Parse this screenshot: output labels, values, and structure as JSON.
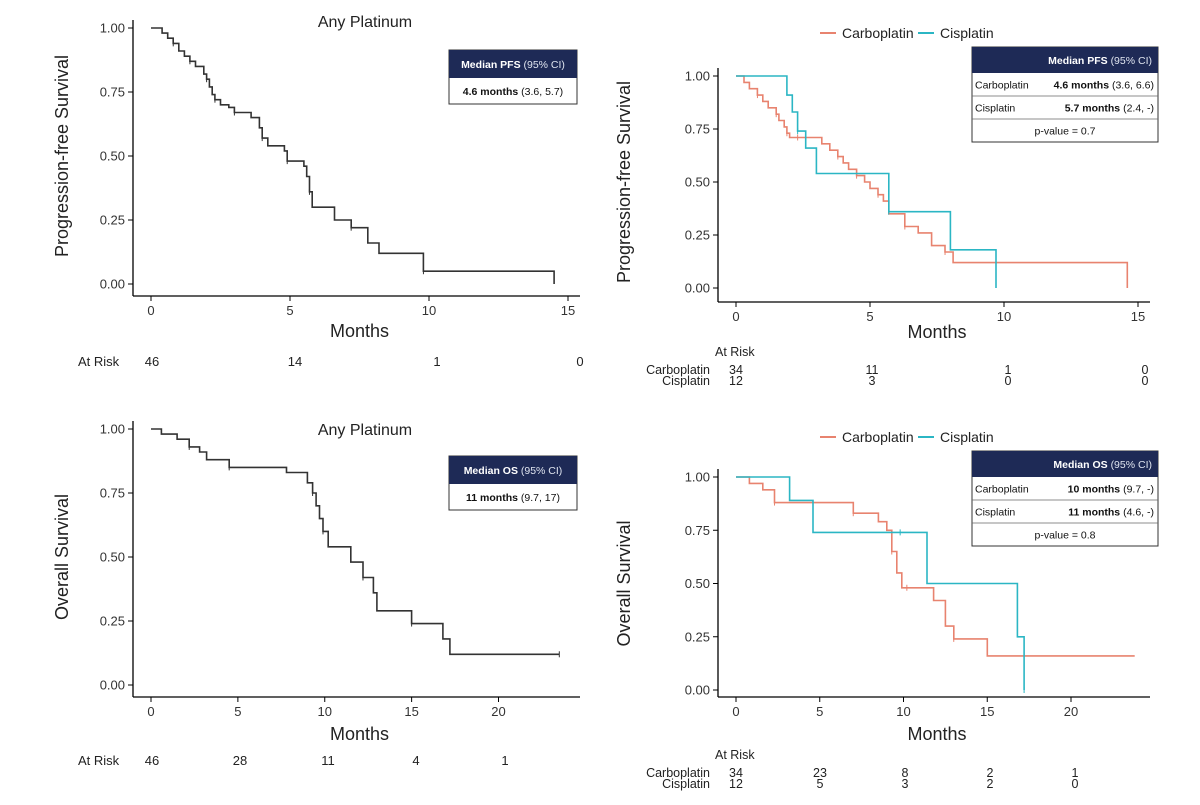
{
  "colors": {
    "carboplatin": "#e8836f",
    "cisplatin": "#2bb6c4",
    "overall": "#333333",
    "box_header": "#1e2a56"
  },
  "legend": {
    "carboplatin": "Carboplatin",
    "cisplatin": "Cisplatin"
  },
  "chart_data": [
    {
      "type": "line",
      "title": "Any Platinum",
      "xlabel": "Months",
      "ylabel": "Progression-free Survival",
      "xlim": [
        0,
        15
      ],
      "ylim": [
        0,
        1
      ],
      "xticks": [
        "0",
        "5",
        "10",
        "15"
      ],
      "yticks": [
        "0.00",
        "0.25",
        "0.50",
        "0.75",
        "1.00"
      ],
      "series": [
        {
          "key": "overall",
          "x": [
            0,
            0.4,
            0.6,
            0.8,
            1.0,
            1.2,
            1.4,
            1.6,
            1.9,
            2.0,
            2.1,
            2.2,
            2.3,
            2.5,
            2.8,
            3.0,
            3.6,
            3.9,
            4.0,
            4.2,
            4.8,
            4.9,
            5.5,
            5.6,
            5.7,
            5.8,
            6.6,
            7.2,
            7.8,
            8.2,
            9.8,
            14.5
          ],
          "y": [
            1,
            0.98,
            0.96,
            0.94,
            0.91,
            0.89,
            0.87,
            0.85,
            0.82,
            0.8,
            0.77,
            0.74,
            0.72,
            0.7,
            0.69,
            0.67,
            0.65,
            0.61,
            0.57,
            0.54,
            0.52,
            0.48,
            0.46,
            0.42,
            0.36,
            0.3,
            0.25,
            0.22,
            0.16,
            0.12,
            0.05,
            0.0
          ]
        }
      ],
      "at_risk": {
        "label": "At Risk",
        "rows": [
          {
            "name": "",
            "values": [
              "46",
              "14",
              "1",
              "0"
            ]
          }
        ]
      },
      "median_box": {
        "header": "Median PFS",
        "header_ci": "(95% CI)",
        "rows": [
          {
            "label": "",
            "value": "4.6 months",
            "ci": "(3.6, 5.7)"
          }
        ],
        "pvalue": ""
      }
    },
    {
      "type": "line",
      "title": "",
      "xlabel": "Months",
      "ylabel": "Progression-free Survival",
      "xlim": [
        0,
        15
      ],
      "ylim": [
        0,
        1
      ],
      "xticks": [
        "0",
        "5",
        "10",
        "15"
      ],
      "yticks": [
        "0.00",
        "0.25",
        "0.50",
        "0.75",
        "1.00"
      ],
      "series": [
        {
          "name": "Carboplatin",
          "key": "carboplatin",
          "x": [
            0,
            0.3,
            0.5,
            0.8,
            1.0,
            1.2,
            1.5,
            1.6,
            1.8,
            1.9,
            2.0,
            2.1,
            2.3,
            3.2,
            3.5,
            3.8,
            4.0,
            4.2,
            4.5,
            4.8,
            5.0,
            5.3,
            5.5,
            5.7,
            6.3,
            6.8,
            7.3,
            7.8,
            8.1,
            14.6
          ],
          "y": [
            1,
            0.97,
            0.94,
            0.91,
            0.88,
            0.85,
            0.82,
            0.79,
            0.76,
            0.73,
            0.71,
            0.71,
            0.71,
            0.68,
            0.65,
            0.62,
            0.59,
            0.56,
            0.53,
            0.5,
            0.47,
            0.44,
            0.41,
            0.35,
            0.29,
            0.26,
            0.2,
            0.17,
            0.12,
            0.0
          ]
        },
        {
          "name": "Cisplatin",
          "key": "cisplatin",
          "x": [
            0,
            1.9,
            2.1,
            2.3,
            2.6,
            3.0,
            5.7,
            8.0,
            9.7
          ],
          "y": [
            1,
            0.91,
            0.83,
            0.74,
            0.66,
            0.54,
            0.36,
            0.18,
            0.0
          ]
        }
      ],
      "at_risk": {
        "label": "At Risk",
        "rows": [
          {
            "name": "Carboplatin",
            "values": [
              "34",
              "11",
              "1",
              "0"
            ]
          },
          {
            "name": "Cisplatin",
            "values": [
              "12",
              "3",
              "0",
              "0"
            ]
          }
        ]
      },
      "median_box": {
        "header": "Median PFS",
        "header_ci": "(95% CI)",
        "rows": [
          {
            "label": "Carboplatin",
            "value": "4.6 months",
            "ci": "(3.6, 6.6)"
          },
          {
            "label": "Cisplatin",
            "value": "5.7 months",
            "ci": "(2.4, -)"
          }
        ],
        "pvalue": "p-value = 0.7"
      }
    },
    {
      "type": "line",
      "title": "Any Platinum",
      "xlabel": "Months",
      "ylabel": "Overall Survival",
      "xlim": [
        0,
        24
      ],
      "ylim": [
        0,
        1
      ],
      "xticks": [
        "0",
        "5",
        "10",
        "15",
        "20"
      ],
      "yticks": [
        "0.00",
        "0.25",
        "0.50",
        "0.75",
        "1.00"
      ],
      "series": [
        {
          "key": "overall",
          "x": [
            0,
            0.6,
            1.5,
            2.2,
            2.8,
            3.2,
            4.5,
            7.8,
            9.0,
            9.3,
            9.5,
            9.7,
            9.9,
            10.2,
            11.5,
            12.2,
            12.8,
            13.0,
            15.0,
            16.8,
            17.2,
            23.5
          ],
          "y": [
            1,
            0.98,
            0.96,
            0.93,
            0.91,
            0.88,
            0.85,
            0.83,
            0.79,
            0.75,
            0.7,
            0.65,
            0.6,
            0.54,
            0.48,
            0.42,
            0.36,
            0.29,
            0.24,
            0.18,
            0.12,
            0.12
          ]
        }
      ],
      "at_risk": {
        "label": "At Risk",
        "rows": [
          {
            "name": "",
            "values": [
              "46",
              "28",
              "11",
              "4",
              "1"
            ]
          }
        ]
      },
      "median_box": {
        "header": "Median OS",
        "header_ci": "(95% CI)",
        "rows": [
          {
            "label": "",
            "value": "11 months",
            "ci": "(9.7, 17)"
          }
        ],
        "pvalue": ""
      }
    },
    {
      "type": "line",
      "title": "",
      "xlabel": "Months",
      "ylabel": "Overall Survival",
      "xlim": [
        0,
        24
      ],
      "ylim": [
        0,
        1
      ],
      "xticks": [
        "0",
        "5",
        "10",
        "15",
        "20"
      ],
      "yticks": [
        "0.00",
        "0.25",
        "0.50",
        "0.75",
        "1.00"
      ],
      "series": [
        {
          "name": "Carboplatin",
          "key": "carboplatin",
          "x": [
            0,
            0.8,
            1.6,
            2.3,
            4.2,
            5.3,
            7.0,
            8.5,
            9.0,
            9.3,
            9.6,
            9.9,
            10.2,
            11.8,
            12.5,
            13.0,
            15.0,
            23.8
          ],
          "y": [
            1,
            0.97,
            0.94,
            0.88,
            0.88,
            0.88,
            0.83,
            0.79,
            0.75,
            0.65,
            0.55,
            0.48,
            0.48,
            0.42,
            0.3,
            0.24,
            0.16,
            0.16
          ]
        },
        {
          "name": "Cisplatin",
          "key": "cisplatin",
          "x": [
            0,
            3.2,
            4.6,
            9.8,
            11.4,
            16.8,
            17.2
          ],
          "y": [
            1,
            0.89,
            0.74,
            0.74,
            0.5,
            0.25,
            0.0
          ]
        }
      ],
      "at_risk": {
        "label": "At Risk",
        "rows": [
          {
            "name": "Carboplatin",
            "values": [
              "34",
              "23",
              "8",
              "2",
              "1"
            ]
          },
          {
            "name": "Cisplatin",
            "values": [
              "12",
              "5",
              "3",
              "2",
              "0"
            ]
          }
        ]
      },
      "median_box": {
        "header": "Median OS",
        "header_ci": "(95% CI)",
        "rows": [
          {
            "label": "Carboplatin",
            "value": "10 months",
            "ci": "(9.7, -)"
          },
          {
            "label": "Cisplatin",
            "value": "11 months",
            "ci": "(4.6, -)"
          }
        ],
        "pvalue": "p-value = 0.8"
      }
    }
  ]
}
